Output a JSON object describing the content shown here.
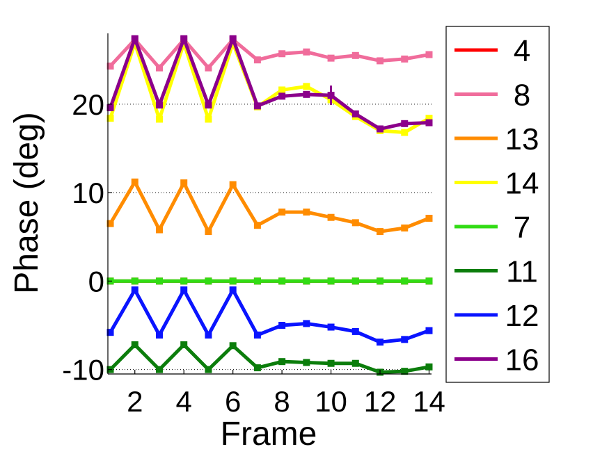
{
  "chart_data": {
    "type": "line",
    "title": "",
    "xlabel": "Frame",
    "ylabel": "Phase (deg)",
    "xlim": [
      0.9,
      14.1
    ],
    "ylim": [
      -10.5,
      28
    ],
    "xticks": [
      2,
      4,
      6,
      8,
      10,
      12,
      14
    ],
    "yticks": [
      -10,
      0,
      10,
      20
    ],
    "ygrid_dotted": true,
    "legend_position": "right",
    "x": [
      1,
      2,
      3,
      4,
      5,
      6,
      7,
      8,
      9,
      10,
      11,
      12,
      13,
      14
    ],
    "series": [
      {
        "name": "4",
        "color": "#ff0000",
        "values": [
          0,
          0,
          0,
          0,
          0,
          0,
          0,
          0,
          0,
          0,
          0,
          0,
          0,
          0
        ]
      },
      {
        "name": "8",
        "color": "#f06c9b",
        "values": [
          24.3,
          27.3,
          24.1,
          27.3,
          24.1,
          27.3,
          25.0,
          25.7,
          25.9,
          25.2,
          25.5,
          24.9,
          25.1,
          25.6
        ]
      },
      {
        "name": "13",
        "color": "#ff8c00",
        "values": [
          6.5,
          11.2,
          5.8,
          11.1,
          5.6,
          10.9,
          6.3,
          7.8,
          7.8,
          7.2,
          6.6,
          5.6,
          6.0,
          7.1
        ]
      },
      {
        "name": "14",
        "color": "#ffff00",
        "values": [
          18.4,
          26.9,
          18.3,
          26.9,
          18.3,
          26.9,
          19.7,
          21.6,
          22.0,
          20.5,
          18.6,
          17.0,
          16.8,
          18.4
        ]
      },
      {
        "name": "7",
        "color": "#32dc14",
        "values": [
          0,
          0,
          0,
          0,
          0,
          0,
          0,
          0,
          0,
          0,
          0,
          0,
          0,
          0
        ]
      },
      {
        "name": "11",
        "color": "#0b7d0b",
        "values": [
          -10.0,
          -7.2,
          -10.0,
          -7.2,
          -10.0,
          -7.3,
          -9.8,
          -9.1,
          -9.2,
          -9.3,
          -9.3,
          -10.3,
          -10.2,
          -9.7
        ]
      },
      {
        "name": "12",
        "color": "#0a14ff",
        "values": [
          -5.8,
          -1.0,
          -6.1,
          -1.0,
          -6.1,
          -1.0,
          -6.1,
          -5.0,
          -4.8,
          -5.2,
          -5.7,
          -6.9,
          -6.6,
          -5.6
        ]
      },
      {
        "name": "16",
        "color": "#8b008b",
        "values": [
          19.6,
          27.4,
          19.9,
          27.4,
          19.9,
          27.4,
          19.8,
          20.9,
          21.1,
          21.0,
          18.9,
          17.2,
          17.8,
          17.9
        ]
      }
    ]
  }
}
